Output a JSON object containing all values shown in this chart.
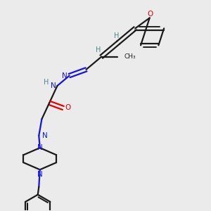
{
  "background_color": "#ebebeb",
  "bond_color": "#1a1a1a",
  "nitrogen_color": "#1414e6",
  "oxygen_color": "#e60000",
  "h_label_color": "#4a8a8a",
  "figsize": [
    3.0,
    3.0
  ],
  "dpi": 100,
  "xlim": [
    0,
    10
  ],
  "ylim": [
    0,
    10
  ]
}
